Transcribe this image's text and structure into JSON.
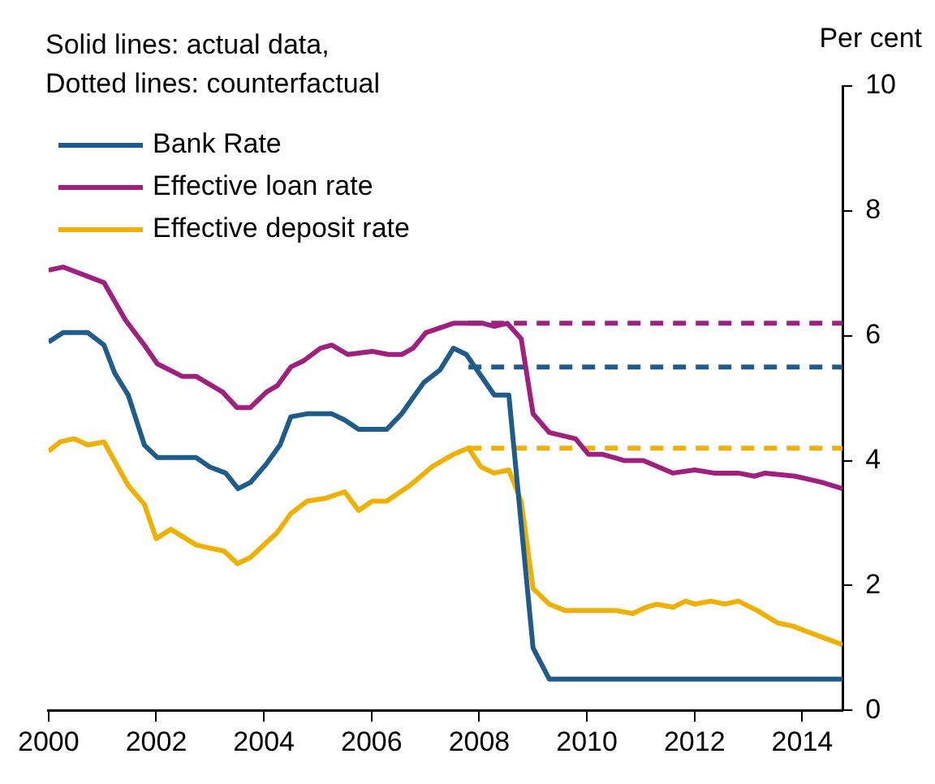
{
  "chart_data": {
    "type": "line",
    "ylabel": "Per cent",
    "annotations": [
      "Solid lines: actual data,",
      "Dotted lines: counterfactual"
    ],
    "xlim": [
      2000,
      2014.75
    ],
    "xticks": [
      2000,
      2002,
      2004,
      2006,
      2008,
      2010,
      2012,
      2014
    ],
    "ylim": [
      0,
      10
    ],
    "yticks": [
      0,
      2,
      4,
      6,
      8,
      10
    ],
    "legend": "top left",
    "marker": "none",
    "series": [
      {
        "name": "Bank Rate",
        "color": "#1f5c8b",
        "line_style": "solid",
        "x": [
          2000.0,
          2000.27,
          2000.73,
          2001.03,
          2001.23,
          2001.48,
          2001.78,
          2002.02,
          2002.74,
          2002.99,
          2003.29,
          2003.52,
          2003.75,
          2004.05,
          2004.3,
          2004.5,
          2004.8,
          2005.26,
          2005.5,
          2005.76,
          2006.28,
          2006.56,
          2006.97,
          2007.27,
          2007.52,
          2007.76,
          2008.28,
          2008.55,
          2009.0,
          2009.3,
          2014.75
        ],
        "values": [
          5.9,
          6.05,
          6.05,
          5.85,
          5.4,
          5.05,
          4.25,
          4.05,
          4.05,
          3.9,
          3.8,
          3.55,
          3.65,
          3.95,
          4.25,
          4.7,
          4.75,
          4.75,
          4.65,
          4.5,
          4.5,
          4.75,
          5.25,
          5.45,
          5.8,
          5.7,
          5.05,
          5.05,
          1.0,
          0.5,
          0.5
        ]
      },
      {
        "name": "Effective loan rate",
        "color": "#a0207f",
        "line_style": "solid",
        "x": [
          2000.0,
          2000.27,
          2000.73,
          2001.03,
          2001.43,
          2001.78,
          2002.02,
          2002.48,
          2002.74,
          2003.23,
          2003.5,
          2003.75,
          2004.05,
          2004.25,
          2004.5,
          2004.74,
          2005.05,
          2005.26,
          2005.56,
          2006.01,
          2006.31,
          2006.56,
          2006.77,
          2007.01,
          2007.52,
          2008.07,
          2008.28,
          2008.52,
          2008.78,
          2009.0,
          2009.3,
          2009.79,
          2010.03,
          2010.29,
          2010.7,
          2011.05,
          2011.6,
          2012.0,
          2012.36,
          2012.81,
          2013.11,
          2013.31,
          2013.87,
          2014.37,
          2014.75
        ],
        "values": [
          7.05,
          7.1,
          6.95,
          6.85,
          6.25,
          5.85,
          5.55,
          5.35,
          5.35,
          5.1,
          4.85,
          4.85,
          5.1,
          5.2,
          5.5,
          5.6,
          5.8,
          5.85,
          5.7,
          5.75,
          5.7,
          5.7,
          5.8,
          6.05,
          6.2,
          6.2,
          6.15,
          6.2,
          5.95,
          4.75,
          4.45,
          4.35,
          4.1,
          4.1,
          4.0,
          4.0,
          3.8,
          3.85,
          3.8,
          3.8,
          3.75,
          3.8,
          3.75,
          3.65,
          3.55
        ]
      },
      {
        "name": "Effective deposit rate",
        "color": "#f0b000",
        "line_style": "solid",
        "x": [
          2000.0,
          2000.22,
          2000.47,
          2000.73,
          2001.03,
          2001.48,
          2001.78,
          2002.0,
          2002.27,
          2002.74,
          2002.99,
          2003.26,
          2003.51,
          2003.75,
          2004.25,
          2004.5,
          2004.8,
          2005.16,
          2005.5,
          2005.76,
          2006.01,
          2006.28,
          2006.71,
          2007.12,
          2007.52,
          2007.8,
          2008.03,
          2008.28,
          2008.55,
          2008.78,
          2009.0,
          2009.3,
          2009.59,
          2010.54,
          2010.85,
          2011.1,
          2011.3,
          2011.6,
          2011.83,
          2012.0,
          2012.3,
          2012.56,
          2012.81,
          2013.16,
          2013.54,
          2013.82,
          2014.12,
          2014.75
        ],
        "values": [
          4.15,
          4.3,
          4.35,
          4.25,
          4.3,
          3.6,
          3.3,
          2.75,
          2.9,
          2.65,
          2.6,
          2.55,
          2.35,
          2.45,
          2.85,
          3.15,
          3.35,
          3.4,
          3.5,
          3.2,
          3.35,
          3.35,
          3.6,
          3.9,
          4.1,
          4.2,
          3.9,
          3.8,
          3.85,
          3.35,
          1.95,
          1.7,
          1.6,
          1.6,
          1.55,
          1.65,
          1.7,
          1.65,
          1.75,
          1.7,
          1.75,
          1.7,
          1.75,
          1.6,
          1.4,
          1.35,
          1.25,
          1.05
        ]
      },
      {
        "color": "#1f5c8b",
        "line_style": "dashed",
        "x": [
          2007.8,
          2014.75
        ],
        "values": [
          5.5,
          5.5
        ]
      },
      {
        "color": "#a0207f",
        "line_style": "dashed",
        "x": [
          2007.8,
          2014.75
        ],
        "values": [
          6.2,
          6.2
        ]
      },
      {
        "color": "#f0b000",
        "line_style": "dashed",
        "x": [
          2007.8,
          2014.75
        ],
        "values": [
          4.2,
          4.2
        ]
      }
    ]
  }
}
